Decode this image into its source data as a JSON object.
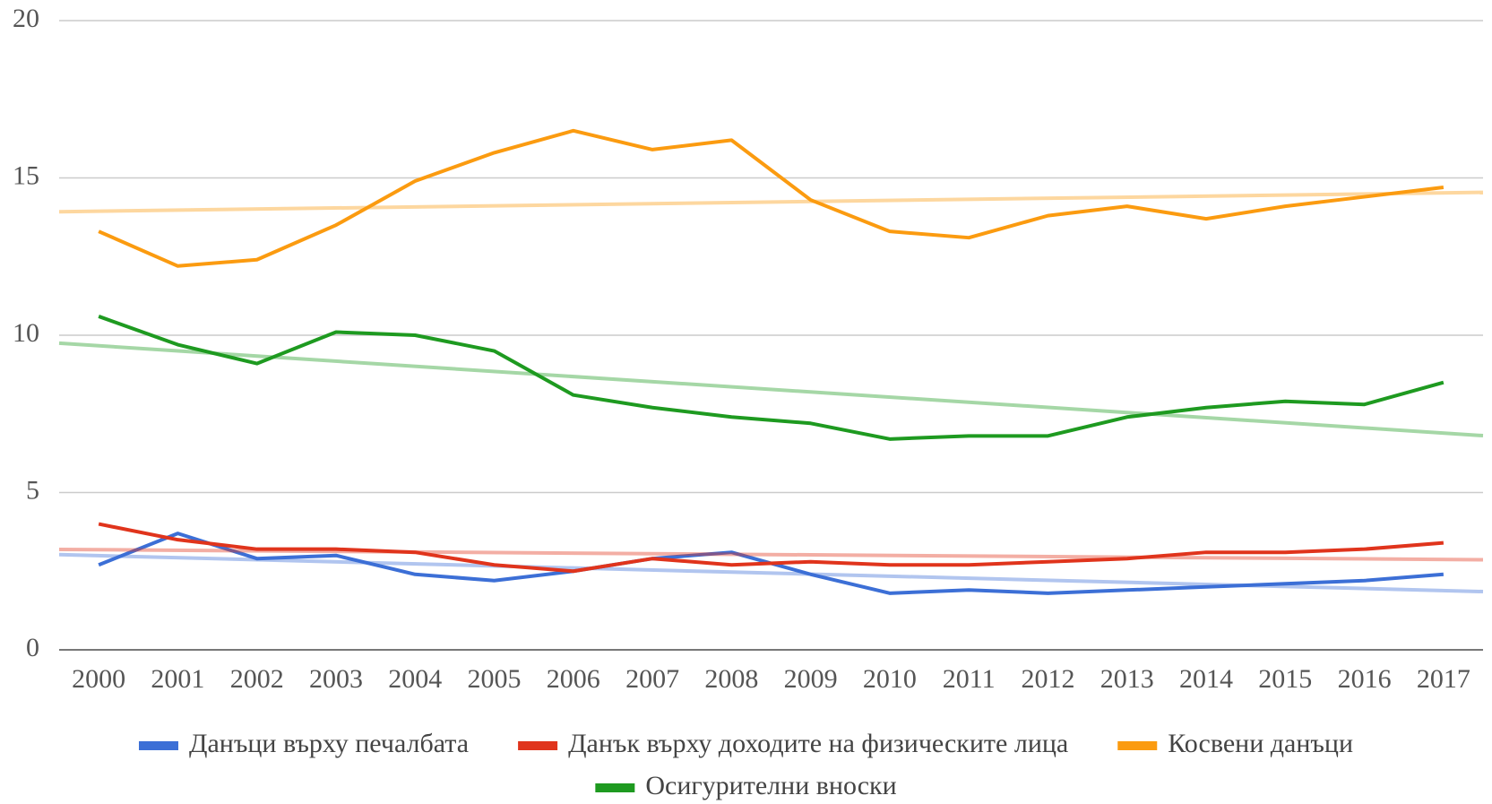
{
  "chart_data": {
    "type": "line",
    "categories": [
      "2000",
      "2001",
      "2002",
      "2003",
      "2004",
      "2005",
      "2006",
      "2007",
      "2008",
      "2009",
      "2010",
      "2011",
      "2012",
      "2013",
      "2014",
      "2015",
      "2016",
      "2017"
    ],
    "series": [
      {
        "name": "Данъци върху печалбата",
        "color": "#3c6fd6",
        "values": [
          2.7,
          3.7,
          2.9,
          3.0,
          2.4,
          2.2,
          2.5,
          2.9,
          3.1,
          2.4,
          1.8,
          1.9,
          1.8,
          1.9,
          2.0,
          2.1,
          2.2,
          2.4
        ]
      },
      {
        "name": "Данък върху доходите на физическите лица",
        "color": "#e0341c",
        "values": [
          4.0,
          3.5,
          3.2,
          3.2,
          3.1,
          2.7,
          2.5,
          2.9,
          2.7,
          2.8,
          2.7,
          2.7,
          2.8,
          2.9,
          3.1,
          3.1,
          3.2,
          3.4
        ]
      },
      {
        "name": "Косвени данъци",
        "color": "#fb9b10",
        "values": [
          13.3,
          12.2,
          12.4,
          13.5,
          14.9,
          15.8,
          16.5,
          15.9,
          16.2,
          14.3,
          13.3,
          13.1,
          13.8,
          14.1,
          13.7,
          14.1,
          14.4,
          14.7
        ]
      },
      {
        "name": "Осигурителни вноски",
        "color": "#1e9a20",
        "values": [
          10.6,
          9.7,
          9.1,
          10.1,
          10.0,
          9.5,
          8.1,
          7.7,
          7.4,
          7.2,
          6.7,
          6.8,
          6.8,
          7.4,
          7.7,
          7.9,
          7.8,
          8.5
        ]
      }
    ],
    "ylim": [
      0,
      20
    ],
    "yticks": [
      0,
      5,
      10,
      15,
      20
    ],
    "grid": true,
    "trendline": true,
    "legend": "bottom"
  }
}
